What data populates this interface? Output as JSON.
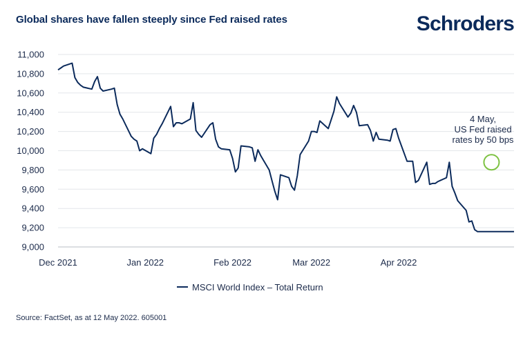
{
  "header": {
    "title": "Global shares have fallen steeply since Fed raised rates",
    "brand": "Schroders"
  },
  "footer": {
    "source": "Source: FactSet, as at 12 May 2022. 605001"
  },
  "colors": {
    "line": "#0b2a5b",
    "grid": "#e3e6ea",
    "highlight": "#7dc242"
  },
  "chart_data": {
    "type": "line",
    "title": "Global shares have fallen steeply since Fed raised rates",
    "xlabel": "",
    "ylabel": "",
    "ylim": [
      9000,
      11000
    ],
    "y_ticks": [
      9000,
      9200,
      9400,
      9600,
      9800,
      10000,
      10200,
      10400,
      10600,
      10800,
      11000
    ],
    "y_tick_labels": [
      "9,000",
      "9,200",
      "9,400",
      "9,600",
      "9,800",
      "10,000",
      "10,200",
      "10,400",
      "10,600",
      "10,800",
      "11,000"
    ],
    "xlim": [
      "2021-12-01",
      "2022-05-12"
    ],
    "x_ticks": [
      "2021-12-01",
      "2022-01-01",
      "2022-02-01",
      "2022-03-01",
      "2022-04-01"
    ],
    "x_tick_labels": [
      "Dec 2021",
      "Jan 2022",
      "Feb 2022",
      "Mar 2022",
      "Apr 2022"
    ],
    "grid": "horizontal",
    "legend": {
      "position": "bottom-center",
      "entries": [
        "MSCI World Index – Total Return"
      ]
    },
    "series": [
      {
        "name": "MSCI World Index – Total Return",
        "x": [
          "2021-12-01",
          "2021-12-02",
          "2021-12-03",
          "2021-12-06",
          "2021-12-07",
          "2021-12-08",
          "2021-12-09",
          "2021-12-10",
          "2021-12-13",
          "2021-12-14",
          "2021-12-15",
          "2021-12-16",
          "2021-12-17",
          "2021-12-20",
          "2021-12-21",
          "2021-12-22",
          "2021-12-23",
          "2021-12-24",
          "2021-12-27",
          "2021-12-28",
          "2021-12-29",
          "2021-12-30",
          "2021-12-31",
          "2022-01-03",
          "2022-01-04",
          "2022-01-05",
          "2022-01-06",
          "2022-01-07",
          "2022-01-10",
          "2022-01-11",
          "2022-01-12",
          "2022-01-13",
          "2022-01-14",
          "2022-01-17",
          "2022-01-18",
          "2022-01-19",
          "2022-01-20",
          "2022-01-21",
          "2022-01-24",
          "2022-01-25",
          "2022-01-26",
          "2022-01-27",
          "2022-01-28",
          "2022-01-31",
          "2022-02-01",
          "2022-02-02",
          "2022-02-03",
          "2022-02-04",
          "2022-02-07",
          "2022-02-08",
          "2022-02-09",
          "2022-02-10",
          "2022-02-11",
          "2022-02-14",
          "2022-02-15",
          "2022-02-16",
          "2022-02-17",
          "2022-02-18",
          "2022-02-21",
          "2022-02-22",
          "2022-02-23",
          "2022-02-24",
          "2022-02-25",
          "2022-02-28",
          "2022-03-01",
          "2022-03-02",
          "2022-03-03",
          "2022-03-04",
          "2022-03-07",
          "2022-03-08",
          "2022-03-09",
          "2022-03-10",
          "2022-03-11",
          "2022-03-14",
          "2022-03-15",
          "2022-03-16",
          "2022-03-17",
          "2022-03-18",
          "2022-03-21",
          "2022-03-22",
          "2022-03-23",
          "2022-03-24",
          "2022-03-25",
          "2022-03-28",
          "2022-03-29",
          "2022-03-30",
          "2022-03-31",
          "2022-04-01",
          "2022-04-04",
          "2022-04-05",
          "2022-04-06",
          "2022-04-07",
          "2022-04-08",
          "2022-04-11",
          "2022-04-12",
          "2022-04-13",
          "2022-04-14",
          "2022-04-15",
          "2022-04-18",
          "2022-04-19",
          "2022-04-20",
          "2022-04-21",
          "2022-04-22",
          "2022-04-25",
          "2022-04-26",
          "2022-04-27",
          "2022-04-28",
          "2022-04-29",
          "2022-05-02",
          "2022-05-03",
          "2022-05-04",
          "2022-05-05",
          "2022-05-06",
          "2022-05-09",
          "2022-05-10",
          "2022-05-11",
          "2022-05-12"
        ],
        "values": [
          10840,
          10860,
          10880,
          10910,
          10760,
          10710,
          10680,
          10660,
          10640,
          10720,
          10770,
          10650,
          10620,
          10640,
          10650,
          10480,
          10380,
          10330,
          10150,
          10120,
          10100,
          10000,
          10020,
          9970,
          10130,
          10170,
          10230,
          10280,
          10460,
          10250,
          10290,
          10290,
          10280,
          10330,
          10500,
          10210,
          10170,
          10140,
          10270,
          10290,
          10120,
          10040,
          10020,
          10010,
          9920,
          9780,
          9820,
          10050,
          10040,
          10030,
          9890,
          10010,
          9950,
          9800,
          9690,
          9580,
          9490,
          9750,
          9720,
          9630,
          9590,
          9740,
          9960,
          10100,
          10200,
          10200,
          10190,
          10310,
          10230,
          10320,
          10410,
          10560,
          10490,
          10350,
          10390,
          10470,
          10400,
          10260,
          10270,
          10210,
          10100,
          10190,
          10120,
          10110,
          10100,
          10220,
          10230,
          10130,
          9890,
          9890,
          9890,
          9670,
          9690,
          9880,
          9650,
          9660,
          9660,
          9680,
          9720,
          9880,
          9630,
          9560,
          9480,
          9380,
          9260,
          9270,
          9180,
          9160,
          9160,
          9160,
          9160,
          9160,
          9160,
          9160,
          9160,
          9160,
          9160
        ]
      }
    ],
    "annotation": {
      "x": "2022-05-04",
      "y": 9880,
      "lines": [
        "4 May,",
        "US Fed raised",
        "rates by 50 bps"
      ]
    }
  }
}
